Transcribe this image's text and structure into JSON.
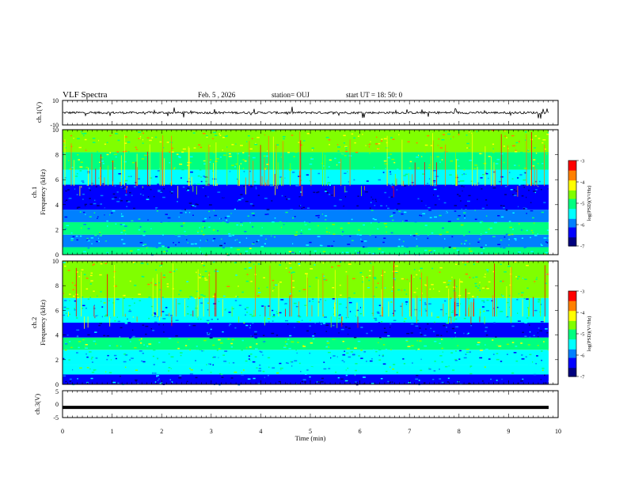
{
  "header": {
    "title": "VLF Spectra",
    "date": "Feb. 5  , 2026",
    "station": "station= OUJ",
    "start_ut": "start  UT  =   18: 50: 0"
  },
  "chart_data": [
    {
      "type": "line",
      "panel": "ch1-waveform",
      "ylabel": "ch.1(V)",
      "ylim": [
        -10,
        10
      ],
      "yticks": [
        "10",
        "-10"
      ],
      "x_range_min": [
        0,
        9.8
      ],
      "baseline_v": 0.0,
      "noise_note": "dense broadband waveform with occasional spikes"
    },
    {
      "type": "heatmap",
      "panel": "ch1-spectrogram",
      "ylabel": "ch.1",
      "ylabel2": "Frequency  (kHz)",
      "ylim": [
        0,
        10
      ],
      "yticks": [
        "0",
        "2",
        "4",
        "6",
        "8",
        "10"
      ],
      "colorbar": {
        "label": "log(PSD)(V²/Hz)",
        "range": [
          -7,
          -3
        ],
        "ticks": [
          "-3",
          "-4",
          "-5",
          "-6",
          "-7"
        ]
      },
      "bands_khz": [
        {
          "from": 0,
          "to": 0.6,
          "level": -5.0
        },
        {
          "from": 0.6,
          "to": 1.6,
          "level": -5.8
        },
        {
          "from": 1.6,
          "to": 2.6,
          "level": -5.2
        },
        {
          "from": 2.6,
          "to": 3.6,
          "level": -5.7
        },
        {
          "from": 3.6,
          "to": 5.6,
          "level": -6.4
        },
        {
          "from": 5.6,
          "to": 6.8,
          "level": -5.6
        },
        {
          "from": 6.8,
          "to": 8.2,
          "level": -4.8
        },
        {
          "from": 8.2,
          "to": 10,
          "level": -4.4
        }
      ]
    },
    {
      "type": "heatmap",
      "panel": "ch2-spectrogram",
      "ylabel": "ch.2",
      "ylabel2": "Frequency  (kHz)",
      "ylim": [
        0,
        10
      ],
      "yticks": [
        "0",
        "2",
        "4",
        "6",
        "8",
        "10"
      ],
      "colorbar": {
        "label": "log(PSD)(V²/Hz)",
        "range": [
          -7,
          -3
        ],
        "ticks": [
          "-3",
          "-4",
          "-5",
          "-6",
          "-7"
        ]
      },
      "bands_khz": [
        {
          "from": 0,
          "to": 0.8,
          "level": -6.2
        },
        {
          "from": 0.8,
          "to": 1.6,
          "level": -5.3
        },
        {
          "from": 1.6,
          "to": 2.8,
          "level": -5.6
        },
        {
          "from": 2.8,
          "to": 3.8,
          "level": -4.9
        },
        {
          "from": 3.8,
          "to": 5.0,
          "level": -6.3
        },
        {
          "from": 5.0,
          "to": 7.0,
          "level": -5.5
        },
        {
          "from": 7.0,
          "to": 10,
          "level": -4.5
        }
      ]
    },
    {
      "type": "line",
      "panel": "ch3-waveform",
      "ylabel": "ch.3(V)",
      "ylim": [
        -5,
        5
      ],
      "yticks": [
        "5",
        "0",
        "-5"
      ],
      "value_v": -1.2,
      "x_range_min": [
        0,
        9.8
      ]
    }
  ],
  "x_axis": {
    "label": "Time  (min)",
    "range": [
      0,
      10
    ],
    "ticks": [
      "0",
      "1",
      "2",
      "3",
      "4",
      "5",
      "6",
      "7",
      "8",
      "9",
      "10"
    ]
  },
  "colors": {
    "colormap": [
      "#00007f",
      "#0000ff",
      "#0080ff",
      "#00ffff",
      "#00ff80",
      "#80ff00",
      "#ffff00",
      "#ff8000",
      "#ff0000",
      "#ffffff"
    ],
    "frame": "#000000",
    "trace": "#000000"
  }
}
